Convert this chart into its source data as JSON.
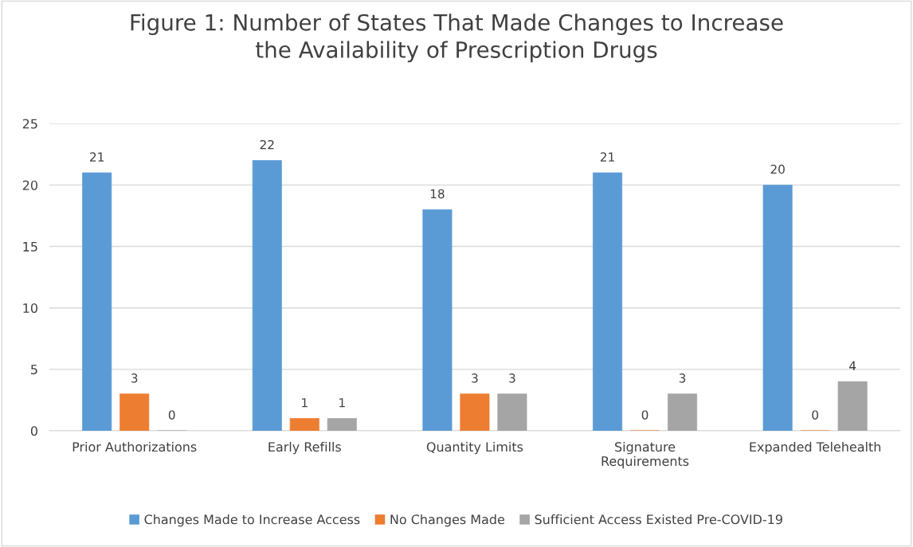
{
  "chart_data": {
    "type": "bar",
    "title": "Figure 1: Number of States That Made Changes to Increase\nthe Availability of Prescription Drugs",
    "categories": [
      "Prior Authorizations",
      "Early Refills",
      "Quantity Limits",
      "Signature\nRequirements",
      "Expanded Telehealth"
    ],
    "series": [
      {
        "name": "Changes Made to Increase Access",
        "color": "#5b9bd5",
        "values": [
          21,
          22,
          18,
          21,
          20
        ]
      },
      {
        "name": "No Changes Made",
        "color": "#ed7d31",
        "values": [
          3,
          1,
          3,
          0,
          0
        ]
      },
      {
        "name": "Sufficient Access Existed Pre-COVID-19",
        "color": "#a5a5a5",
        "values": [
          0,
          1,
          3,
          3,
          4
        ]
      }
    ],
    "ylim": [
      0,
      25
    ],
    "yticks": [
      0,
      5,
      10,
      15,
      20,
      25
    ],
    "grid": "y",
    "legend": "bottom",
    "data_labels": true
  }
}
